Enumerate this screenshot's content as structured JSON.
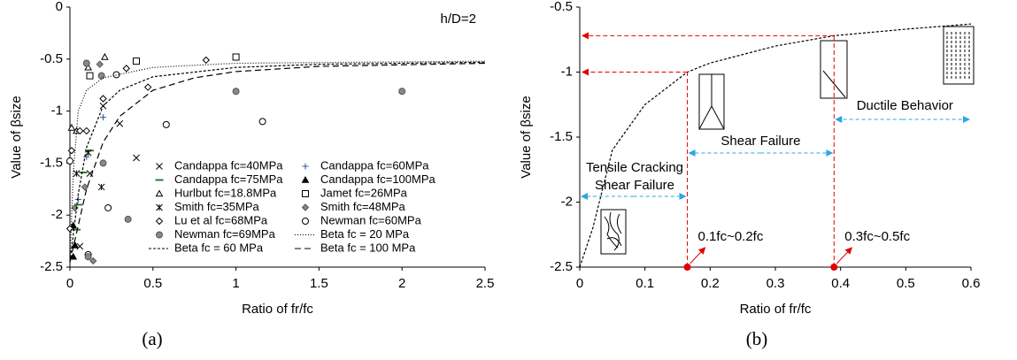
{
  "chart_data": [
    {
      "type": "scatter",
      "caption": "(a)",
      "annotation": "h/D=2",
      "x_label": "Ratio of fr/fc",
      "y_label": "Value of βsize",
      "xlim": [
        0,
        2.5
      ],
      "ylim": [
        -2.5,
        0
      ],
      "xticks": [
        0,
        0.5,
        1,
        1.5,
        2,
        2.5
      ],
      "yticks": [
        0,
        -0.5,
        -1,
        -1.5,
        -2,
        -2.5
      ],
      "series": [
        {
          "name": "Candappa fc=40MPa",
          "marker": "cross",
          "color": "#000000",
          "fill": "none",
          "x": [
            0.06,
            0.12,
            0.2,
            0.3,
            0.4
          ],
          "values": [
            -2.3,
            -1.6,
            -0.95,
            -1.12,
            -1.45
          ]
        },
        {
          "name": "Candappa fc=60MPa",
          "marker": "plus",
          "color": "#2f5597",
          "fill": "none",
          "x": [
            0.05,
            0.1,
            0.2
          ],
          "values": [
            -1.85,
            -1.44,
            -1.06
          ]
        },
        {
          "name": "Candappa fc=75MPa",
          "marker": "dash",
          "color": "#2e7d32",
          "fill": "none",
          "x": [
            0.04,
            0.05,
            0.08,
            0.12
          ],
          "values": [
            -2.14,
            -1.9,
            -1.59,
            -1.38
          ]
        },
        {
          "name": "Candappa fc=100MPa",
          "marker": "triangle",
          "color": "#000000",
          "fill": "#000000",
          "x": [
            0.02,
            0.03,
            0.02
          ],
          "values": [
            -2.1,
            -2.29,
            -2.4
          ]
        },
        {
          "name": "Hurlbut fc=18.8MPa",
          "marker": "triangle",
          "color": "#000000",
          "fill": "#ffffff",
          "x": [
            0.01,
            0.04,
            0.11,
            0.21
          ],
          "values": [
            -1.16,
            -1.19,
            -0.58,
            -0.48
          ]
        },
        {
          "name": "Jamet fc=26MPa",
          "marker": "square",
          "color": "#000000",
          "fill": "#ffffff",
          "x": [
            0.12,
            0.4,
            1.0
          ],
          "values": [
            -0.66,
            -0.52,
            -0.48
          ]
        },
        {
          "name": "Smith fc=35MPa",
          "marker": "asterisk",
          "color": "#000000",
          "fill": "none",
          "x": [
            0.04,
            0.11,
            0.19
          ],
          "values": [
            -1.6,
            -1.4,
            -1.73
          ]
        },
        {
          "name": "Smith fc=48MPa",
          "marker": "diamond",
          "color": "#555555",
          "fill": "#888888",
          "x": [
            0.03,
            0.09,
            0.14,
            0.18
          ],
          "values": [
            -1.93,
            -1.73,
            -2.44,
            -0.55
          ]
        },
        {
          "name": "Lu et al fc=68MPa",
          "marker": "diamond",
          "color": "#000000",
          "fill": "#ffffff",
          "x": [
            0.0,
            0.01,
            0.06,
            0.1,
            0.2,
            0.34,
            0.47,
            0.82
          ],
          "values": [
            -2.13,
            -1.38,
            -1.19,
            -1.19,
            -0.88,
            -0.59,
            -0.77,
            -0.51
          ]
        },
        {
          "name": "Newman fc=60MPa",
          "marker": "circle",
          "color": "#000000",
          "fill": "#ffffff",
          "x": [
            0.0,
            0.11,
            0.23,
            0.28,
            0.58,
            1.16
          ],
          "values": [
            -1.48,
            -2.38,
            -1.93,
            -0.65,
            -1.13,
            -1.1
          ]
        },
        {
          "name": "Newman fc=69MPa",
          "marker": "circle",
          "color": "#555555",
          "fill": "#888888",
          "x": [
            0.1,
            0.11,
            0.19,
            0.2,
            0.35,
            1.0,
            2.0
          ],
          "values": [
            -0.54,
            -2.4,
            -0.66,
            -1.5,
            -2.04,
            -0.81,
            -0.81
          ]
        },
        {
          "name": "Beta fc = 20 MPa",
          "line": "1,2",
          "color": "#000000",
          "x": [
            0,
            0.02,
            0.05,
            0.1,
            0.2,
            0.5,
            1,
            2.5
          ],
          "values": [
            -2.45,
            -1.6,
            -1.0,
            -0.8,
            -0.68,
            -0.58,
            -0.54,
            -0.52
          ]
        },
        {
          "name": "Beta fc = 60 MPa",
          "line": "3,2",
          "color": "#000000",
          "x": [
            0,
            0.05,
            0.1,
            0.2,
            0.3,
            0.5,
            1,
            1.5,
            2.5
          ],
          "values": [
            -2.45,
            -1.8,
            -1.35,
            -0.95,
            -0.8,
            -0.67,
            -0.58,
            -0.55,
            -0.53
          ]
        },
        {
          "name": "Beta fc = 100 MPa",
          "line": "7,4",
          "color": "#000000",
          "x": [
            0,
            0.05,
            0.1,
            0.2,
            0.3,
            0.5,
            0.75,
            1,
            1.5,
            2.5
          ],
          "values": [
            -2.45,
            -2.1,
            -1.75,
            -1.3,
            -1.05,
            -0.8,
            -0.68,
            -0.62,
            -0.57,
            -0.54
          ]
        }
      ]
    },
    {
      "type": "line",
      "caption": "(b)",
      "x_label": "Ratio of fr/fc",
      "y_label": "Value of βsize",
      "xlim": [
        0,
        0.6
      ],
      "ylim": [
        -2.5,
        -0.5
      ],
      "xticks": [
        0,
        0.1,
        0.2,
        0.3,
        0.4,
        0.5,
        0.6
      ],
      "yticks": [
        -0.5,
        -1,
        -1.5,
        -2,
        -2.5
      ],
      "series": [
        {
          "color": "#000000",
          "x": [
            0,
            0.02,
            0.05,
            0.1,
            0.165,
            0.2,
            0.3,
            0.39,
            0.5,
            0.6
          ],
          "values": [
            -2.5,
            -2.2,
            -1.6,
            -1.25,
            -1.0,
            -0.93,
            -0.8,
            -0.72,
            -0.67,
            -0.63
          ]
        }
      ],
      "reference_points": {
        "color": "#e00000",
        "x": [
          0.165,
          0.39
        ],
        "values": [
          -1.0,
          -0.72
        ]
      },
      "range_labels": [
        "0.1fc~0.2fc",
        "0.3fc~0.5fc"
      ],
      "regions": [
        "Tensile Cracking",
        "Shear Failure",
        "Shear Failure",
        "Ductile Behavior"
      ],
      "region_color": "#2aa7df"
    }
  ]
}
